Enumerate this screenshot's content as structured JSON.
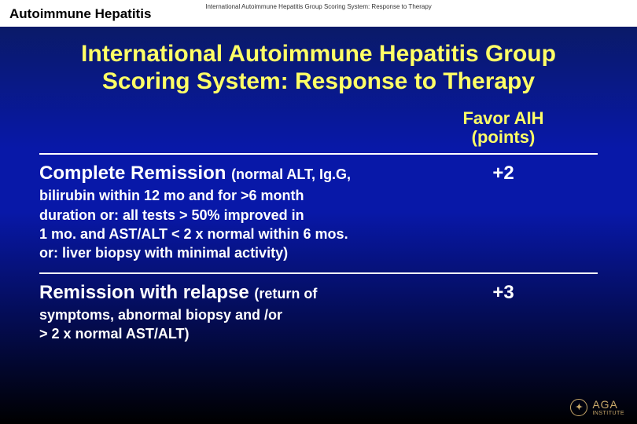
{
  "header": {
    "category": "Autoimmune Hepatitis",
    "subline": "International Autoimmune Hepatitis Group Scoring System: Response to Therapy"
  },
  "slide": {
    "title": "International Autoimmune Hepatitis Group Scoring System: Response to Therapy",
    "column_header_line1": "Favor AIH",
    "column_header_line2": "(points)"
  },
  "rows": [
    {
      "title": "Complete Remission ",
      "sub_inline": "(normal ALT, Ig.G,",
      "detail": "bilirubin within 12 mo and for >6 month\nduration or: all tests > 50% improved in\n1 mo. and AST/ALT < 2 x normal within 6 mos.\nor: liver biopsy with minimal activity)",
      "points": "+2"
    },
    {
      "title": "Remission with relapse ",
      "sub_inline": "(return of",
      "detail": "symptoms, abnormal biopsy and /or\n> 2 x normal AST/ALT)",
      "points": "+3"
    }
  ],
  "footer": {
    "logo_mark": "✦",
    "logo_text": "AGA",
    "logo_sub": "INSTITUTE"
  },
  "style": {
    "bg_gradient_top": "#0a1a5a",
    "bg_gradient_mid": "#0818a8",
    "bg_gradient_bottom": "#000000",
    "accent_yellow": "#ffff66",
    "text_white": "#ffffff",
    "logo_color": "#c9a96a",
    "header_bg": "#ffffff",
    "header_text": "#000000",
    "title_fontsize": 30,
    "item_title_fontsize": 24,
    "item_sub_fontsize": 18,
    "points_fontsize": 24,
    "divider_color": "#ffffff"
  }
}
